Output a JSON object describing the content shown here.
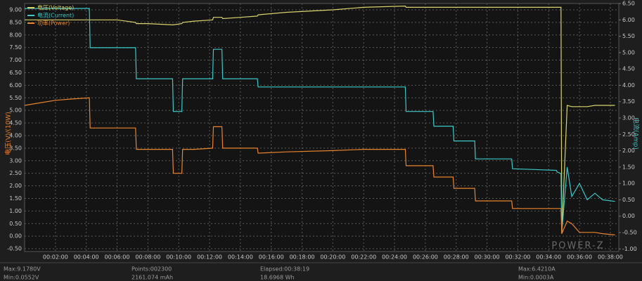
{
  "chart_data": {
    "type": "line",
    "y_label": "电压(V)/(10W)",
    "y2_label": "电流(Amp)",
    "logo": "POWER-Z",
    "grid": true,
    "legend": "top-left",
    "x": [
      0,
      1,
      2,
      3,
      4.2,
      4.25,
      5,
      6,
      7.2,
      7.25,
      8,
      9.6,
      9.65,
      10.2,
      10.25,
      11,
      12.2,
      12.25,
      12.8,
      12.85,
      14,
      15.1,
      15.15,
      17,
      20,
      22,
      24.7,
      24.75,
      26.5,
      26.55,
      27.8,
      27.85,
      29.2,
      29.25,
      31.6,
      31.65,
      34.5,
      34.55,
      34.8,
      34.85,
      35.2,
      35.5,
      36,
      36.5,
      37,
      37.5,
      38.3
    ],
    "series": [
      {
        "name": "电压(Voltage)",
        "color": "#d8d46a",
        "axis": "y",
        "values": [
          8.6,
          8.6,
          8.6,
          8.6,
          8.6,
          8.6,
          8.6,
          8.6,
          8.5,
          8.45,
          8.45,
          8.4,
          8.4,
          8.45,
          8.5,
          8.55,
          8.6,
          8.7,
          8.7,
          8.65,
          8.7,
          8.75,
          8.8,
          8.9,
          9.0,
          9.1,
          9.15,
          9.1,
          9.1,
          9.1,
          9.1,
          9.1,
          9.1,
          9.1,
          9.1,
          9.1,
          9.1,
          9.1,
          9.1,
          0.1,
          5.2,
          5.15,
          5.15,
          5.15,
          5.2,
          5.2,
          5.2
        ]
      },
      {
        "name": "电流(Current)",
        "color": "#3cc8c8",
        "axis": "y2",
        "values": [
          6.35,
          6.35,
          6.35,
          6.35,
          6.35,
          5.15,
          5.15,
          5.15,
          5.15,
          4.2,
          4.2,
          4.2,
          3.2,
          3.2,
          4.2,
          4.2,
          4.2,
          5.1,
          5.1,
          4.2,
          4.2,
          4.2,
          3.95,
          3.95,
          3.95,
          3.95,
          3.95,
          3.2,
          3.2,
          2.75,
          2.75,
          2.3,
          2.3,
          1.75,
          1.75,
          1.45,
          1.4,
          1.35,
          1.3,
          -0.5,
          1.5,
          0.6,
          1.0,
          0.5,
          0.7,
          0.5,
          0.45
        ]
      },
      {
        "name": "功率(Power)",
        "color": "#e8842c",
        "axis": "y",
        "values": [
          5.2,
          5.3,
          5.4,
          5.45,
          5.5,
          4.3,
          4.3,
          4.3,
          4.3,
          3.45,
          3.45,
          3.45,
          2.5,
          2.5,
          3.45,
          3.45,
          3.5,
          4.35,
          4.35,
          3.5,
          3.5,
          3.5,
          3.3,
          3.35,
          3.4,
          3.45,
          3.45,
          2.8,
          2.8,
          2.35,
          2.35,
          1.9,
          1.9,
          1.4,
          1.4,
          1.1,
          1.1,
          1.1,
          1.1,
          0.1,
          0.6,
          0.5,
          0.15,
          0.15,
          0.15,
          0.1,
          0.05
        ]
      }
    ],
    "xlim": [
      0,
      38.55
    ],
    "xticks": [
      {
        "value": 2,
        "label": "00:02:00"
      },
      {
        "value": 4,
        "label": "00:04:00"
      },
      {
        "value": 6,
        "label": "00:06:00"
      },
      {
        "value": 8,
        "label": "00:08:00"
      },
      {
        "value": 10,
        "label": "00:10:00"
      },
      {
        "value": 12,
        "label": "00:12:00"
      },
      {
        "value": 14,
        "label": "00:14:00"
      },
      {
        "value": 16,
        "label": "00:16:00"
      },
      {
        "value": 18,
        "label": "00:18:00"
      },
      {
        "value": 20,
        "label": "00:20:00"
      },
      {
        "value": 22,
        "label": "00:22:00"
      },
      {
        "value": 24,
        "label": "00:24:00"
      },
      {
        "value": 26,
        "label": "00:26:00"
      },
      {
        "value": 28,
        "label": "00:28:00"
      },
      {
        "value": 30,
        "label": "00:30:00"
      },
      {
        "value": 32,
        "label": "00:32:00"
      },
      {
        "value": 34,
        "label": "00:34:00"
      },
      {
        "value": 36,
        "label": "00:36:00"
      },
      {
        "value": 38,
        "label": "00:38:00"
      }
    ],
    "ylim": [
      -0.61,
      9.25
    ],
    "yticks": [
      {
        "value": -0.5,
        "label": "-0.50"
      },
      {
        "value": 0,
        "label": "0.00"
      },
      {
        "value": 0.5,
        "label": "0.50"
      },
      {
        "value": 1,
        "label": "1.00"
      },
      {
        "value": 1.5,
        "label": "1.50"
      },
      {
        "value": 2,
        "label": "2.00"
      },
      {
        "value": 2.5,
        "label": "2.50"
      },
      {
        "value": 3,
        "label": "3.00"
      },
      {
        "value": 3.5,
        "label": "3.50"
      },
      {
        "value": 4,
        "label": "4.00"
      },
      {
        "value": 4.5,
        "label": "4.50"
      },
      {
        "value": 5,
        "label": "5.00"
      },
      {
        "value": 5.5,
        "label": "5.50"
      },
      {
        "value": 6,
        "label": "6.00"
      },
      {
        "value": 6.5,
        "label": "6.50"
      },
      {
        "value": 7,
        "label": "7.00"
      },
      {
        "value": 7.5,
        "label": "7.50"
      },
      {
        "value": 8,
        "label": "8.00"
      },
      {
        "value": 8.5,
        "label": "8.50"
      },
      {
        "value": 9,
        "label": "9.00"
      }
    ],
    "y2lim": [
      -1.08,
      6.5
    ],
    "y2ticks": [
      {
        "value": -1,
        "label": "-1.00"
      },
      {
        "value": -0.5,
        "label": "-0.50"
      },
      {
        "value": 0,
        "label": "0.00"
      },
      {
        "value": 0.5,
        "label": "0.50"
      },
      {
        "value": 1,
        "label": "1.00"
      },
      {
        "value": 1.5,
        "label": "1.50"
      },
      {
        "value": 2,
        "label": "2.00"
      },
      {
        "value": 2.5,
        "label": "2.50"
      },
      {
        "value": 3,
        "label": "3.00"
      },
      {
        "value": 3.5,
        "label": "3.50"
      },
      {
        "value": 4,
        "label": "4.00"
      },
      {
        "value": 4.5,
        "label": "4.50"
      },
      {
        "value": 5,
        "label": "5.00"
      },
      {
        "value": 5.5,
        "label": "5.50"
      },
      {
        "value": 6,
        "label": "6.00"
      },
      {
        "value": 6.5,
        "label": "6.50"
      }
    ]
  },
  "footer": {
    "stats": [
      "Max:9.1780V",
      "Min:0.0552V",
      "Points:002300",
      "2161.074 mAh",
      "Elapsed:00:38:19",
      "18.6968 Wh",
      "Max:6.4210A",
      "Min:0.0003A"
    ]
  }
}
